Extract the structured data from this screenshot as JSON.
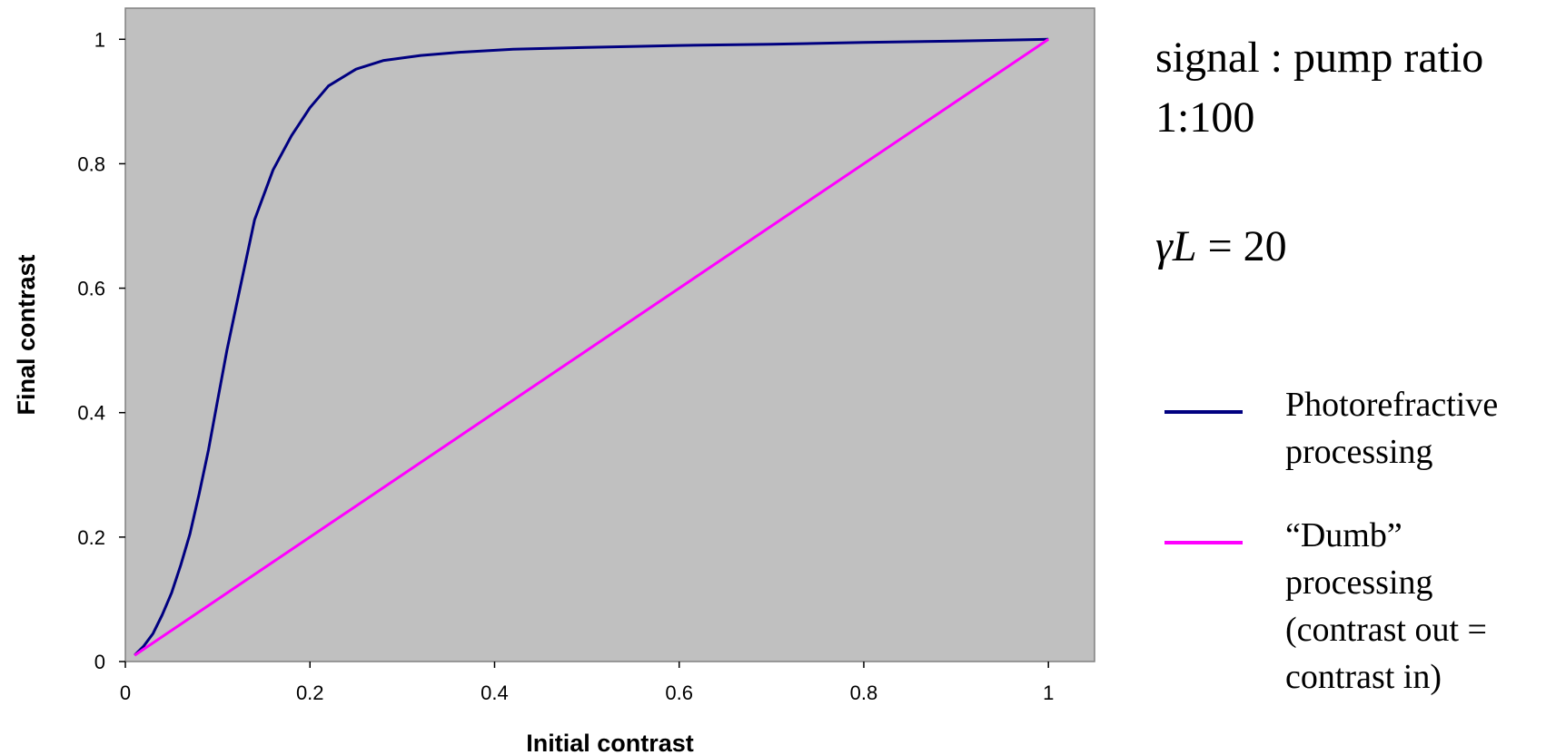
{
  "chart_data": {
    "type": "line",
    "xlabel": "Initial contrast",
    "ylabel": "Final contrast",
    "xlim": [
      0,
      1.05
    ],
    "ylim": [
      0,
      1.05
    ],
    "x_ticks": [
      "0",
      "0.2",
      "0.4",
      "0.6",
      "0.8",
      "1"
    ],
    "y_ticks": [
      "0",
      "0.2",
      "0.4",
      "0.6",
      "0.8",
      "1"
    ],
    "plot_background": "#c0c0c0",
    "grid": false,
    "legend_position": "right",
    "series": [
      {
        "name": "Photorefractive processing",
        "color": "#000080",
        "points": [
          [
            0.01,
            0.01
          ],
          [
            0.02,
            0.025
          ],
          [
            0.03,
            0.045
          ],
          [
            0.04,
            0.075
          ],
          [
            0.05,
            0.11
          ],
          [
            0.06,
            0.155
          ],
          [
            0.07,
            0.205
          ],
          [
            0.08,
            0.27
          ],
          [
            0.09,
            0.34
          ],
          [
            0.1,
            0.42
          ],
          [
            0.11,
            0.5
          ],
          [
            0.12,
            0.57
          ],
          [
            0.13,
            0.64
          ],
          [
            0.14,
            0.71
          ],
          [
            0.16,
            0.79
          ],
          [
            0.18,
            0.845
          ],
          [
            0.2,
            0.89
          ],
          [
            0.22,
            0.925
          ],
          [
            0.25,
            0.952
          ],
          [
            0.28,
            0.966
          ],
          [
            0.32,
            0.974
          ],
          [
            0.36,
            0.979
          ],
          [
            0.42,
            0.984
          ],
          [
            0.5,
            0.987
          ],
          [
            0.6,
            0.99
          ],
          [
            0.7,
            0.992
          ],
          [
            0.8,
            0.995
          ],
          [
            0.9,
            0.997
          ],
          [
            1.0,
            1.0
          ]
        ]
      },
      {
        "name": "“Dumb” processing (contrast out = contrast in)",
        "color": "#ff00ff",
        "points": [
          [
            0.01,
            0.01
          ],
          [
            1.0,
            1.0
          ]
        ]
      }
    ]
  },
  "annotations": {
    "ratio_line1": "signal : pump ratio",
    "ratio_line2": "1:100",
    "gamma_symbol": "γL",
    "gamma_value": "= 20"
  },
  "legend": {
    "photorefractive_line1": "Photorefractive",
    "photorefractive_line2": "processing",
    "dumb_line1": "“Dumb”",
    "dumb_line2": "processing",
    "dumb_line3": "(contrast out  =",
    "dumb_line4": "contrast in)"
  }
}
